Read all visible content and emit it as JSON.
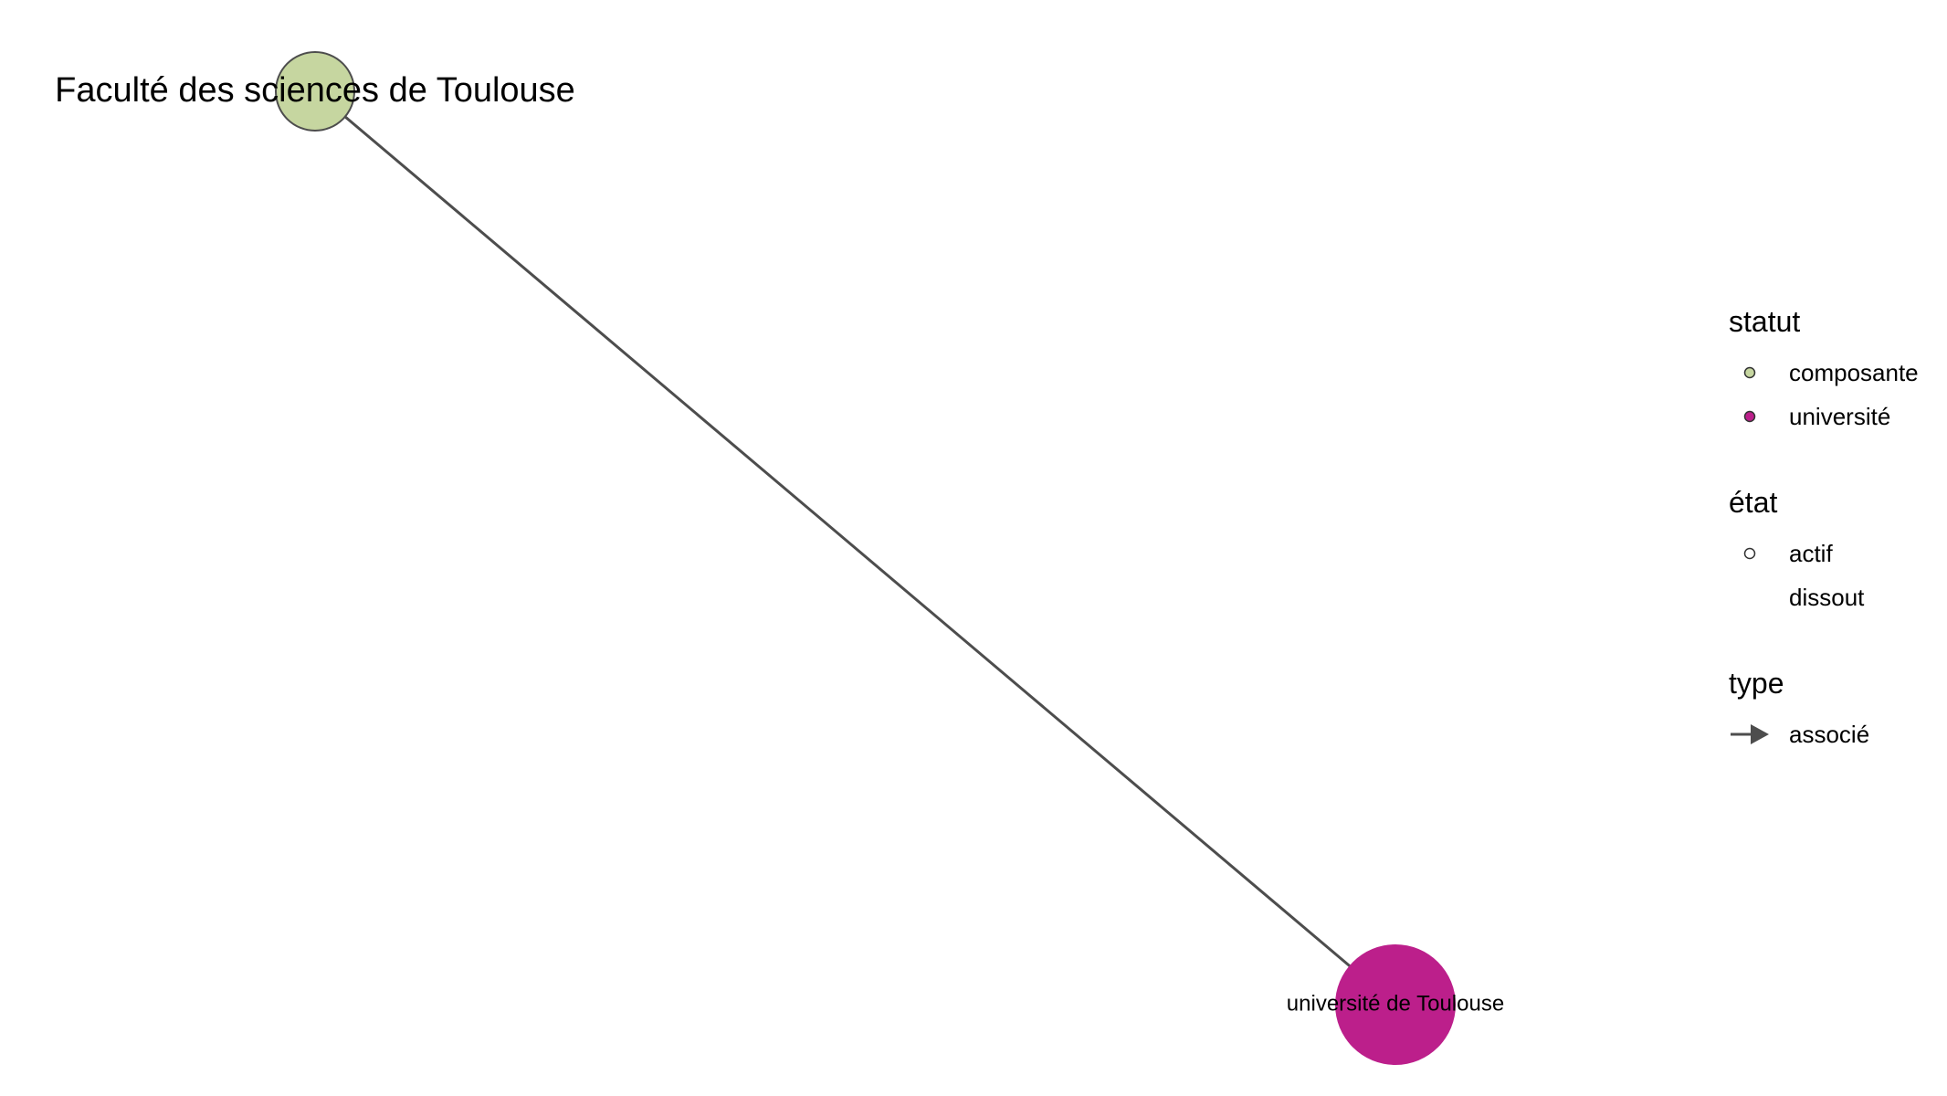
{
  "graph": {
    "nodes": [
      {
        "id": "n1",
        "label": "Faculté des sciences de Toulouse",
        "statut": "composante",
        "etat": "actif",
        "color": "#c6d6a0"
      },
      {
        "id": "n2",
        "label": "université de Toulouse",
        "statut": "université",
        "etat": "actif",
        "color": "#bc1f8b"
      }
    ],
    "edges": [
      {
        "from": "n1",
        "to": "n2",
        "type": "associé",
        "color": "#4d4d4d"
      }
    ]
  },
  "legend": {
    "statut": {
      "title": "statut",
      "items": [
        {
          "label": "composante",
          "color": "#c6d6a0"
        },
        {
          "label": "université",
          "color": "#bc1f8b"
        }
      ]
    },
    "etat": {
      "title": "état",
      "items": [
        {
          "label": "actif",
          "shape": "hollow-circle"
        },
        {
          "label": "dissout",
          "shape": "none"
        }
      ]
    },
    "type": {
      "title": "type",
      "items": [
        {
          "label": "associé",
          "shape": "arrow",
          "color": "#4d4d4d"
        }
      ]
    }
  }
}
